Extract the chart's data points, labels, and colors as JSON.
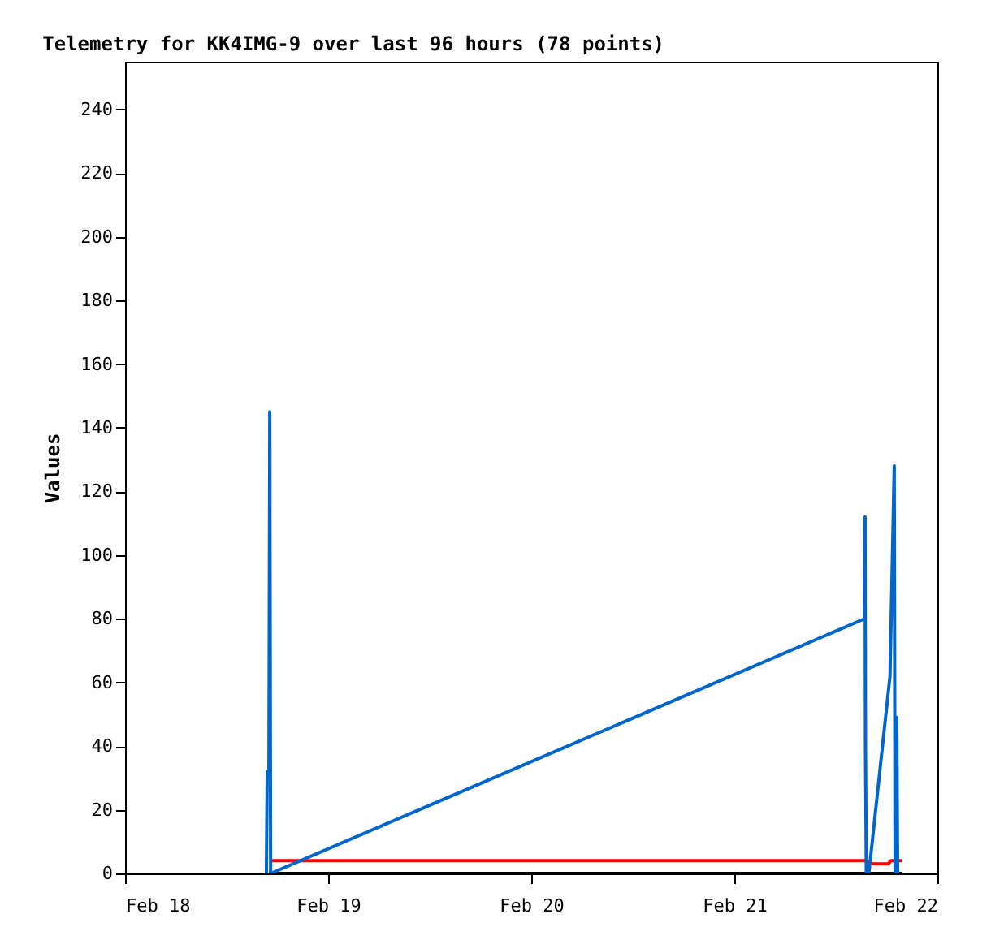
{
  "chart_data": {
    "type": "line",
    "title": "Telemetry for KK4IMG-9 over last 96 hours (78 points)",
    "ylabel": "Values",
    "xlim": [
      "--02-18T00:00",
      "--02-22T00:00"
    ],
    "xticks": [
      {
        "value": "--02-18T00:00",
        "label": "Feb 18"
      },
      {
        "value": "--02-19T00:00",
        "label": "Feb 19"
      },
      {
        "value": "--02-20T00:00",
        "label": "Feb 20"
      },
      {
        "value": "--02-21T00:00",
        "label": "Feb 21"
      },
      {
        "value": "--02-22T00:00",
        "label": "Feb 22"
      }
    ],
    "ylim": [
      0,
      255
    ],
    "yticks": [
      0,
      20,
      40,
      60,
      80,
      100,
      120,
      140,
      160,
      180,
      200,
      220,
      240
    ],
    "grid": false,
    "legend": false,
    "marker": "none",
    "line_style": "solid",
    "series": [
      {
        "color": "#000000",
        "x": [
          "--02-18T17:00",
          "--02-21T19:48"
        ],
        "values": [
          0,
          0
        ]
      },
      {
        "color": "#ff0000",
        "x": [
          "--02-18T17:06",
          "--02-21T15:30",
          "--02-21T16:24",
          "--02-21T18:12",
          "--02-21T18:30",
          "--02-21T19:48"
        ],
        "values": [
          4,
          4,
          3,
          3,
          4,
          4
        ]
      },
      {
        "color": "#0066cc",
        "x": [
          "--02-18T16:42",
          "--02-18T16:48",
          "--02-18T17:00",
          "--02-18T17:06",
          "--02-18T17:12",
          "--02-21T15:24",
          "--02-21T15:27",
          "--02-21T15:30",
          "--02-21T15:36",
          "--02-21T15:54",
          "--02-21T18:24",
          "--02-21T18:54",
          "--02-21T19:00",
          "--02-21T19:12",
          "--02-21T19:18"
        ],
        "values": [
          0,
          32,
          32,
          145,
          0,
          80,
          112,
          40,
          0,
          0,
          62,
          128,
          0,
          49,
          0
        ]
      }
    ]
  }
}
